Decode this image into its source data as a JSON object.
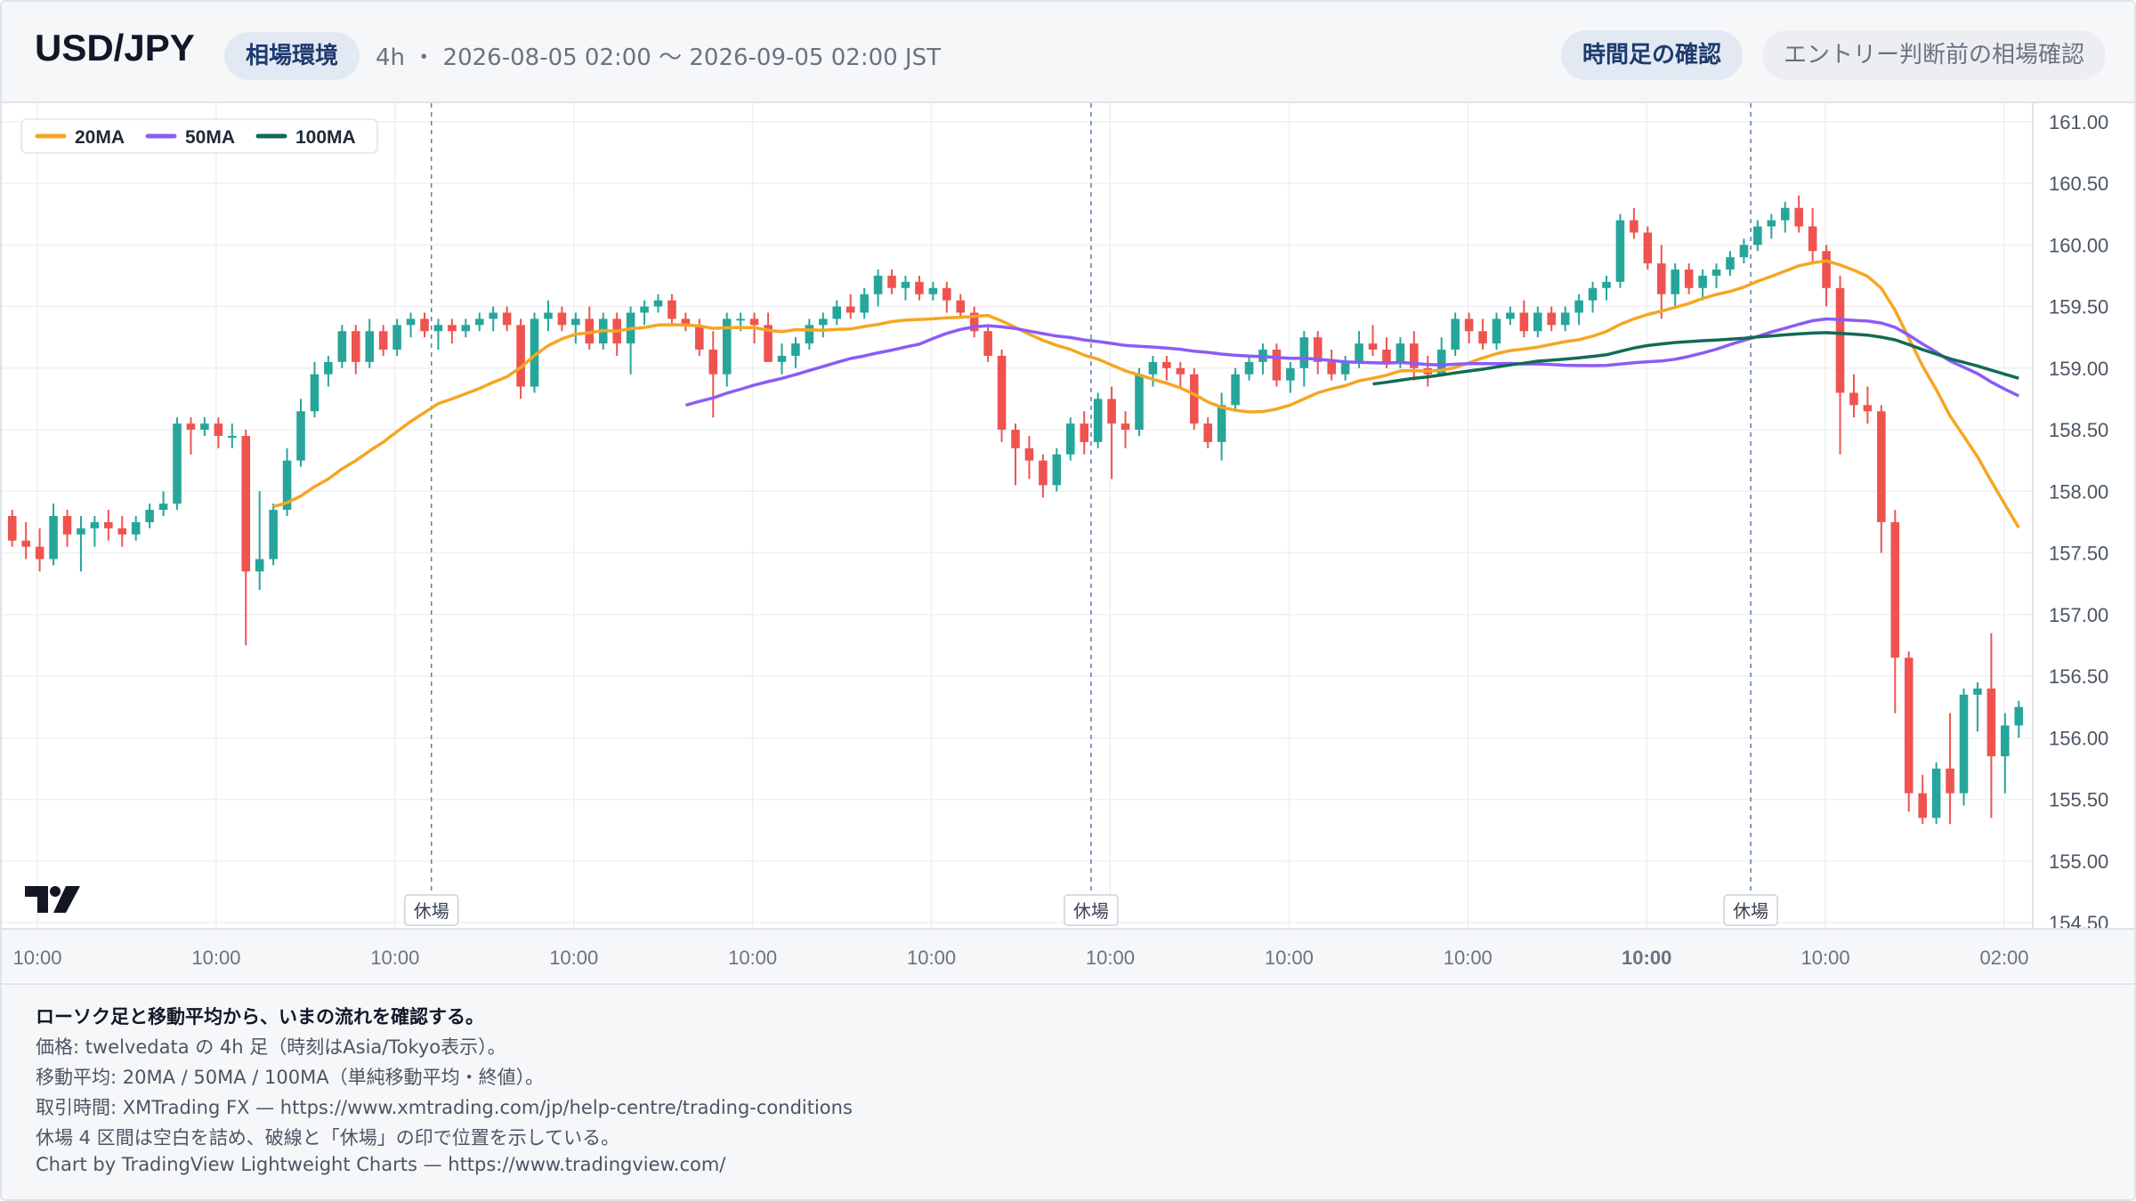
{
  "header": {
    "symbol": "USD/JPY",
    "badge": "相場環境",
    "range": "4h ・ 2026-08-05 02:00 〜 2026-09-05 02:00 JST",
    "btn_timeframe": "時間足の確認",
    "btn_entry": "エントリー判断前の相場確認"
  },
  "legend": [
    {
      "label": "20MA",
      "color": "#f5a623"
    },
    {
      "label": "50MA",
      "color": "#8b5cf6"
    },
    {
      "label": "100MA",
      "color": "#136a56"
    }
  ],
  "colors": {
    "up": "#26a69a",
    "down": "#ef5350",
    "grid": "#eef0f3",
    "axis_text": "#6b7280"
  },
  "chart_data": {
    "type": "candlestick",
    "symbol": "USD/JPY",
    "timeframe": "4h",
    "y_ticks": [
      "161.00",
      "160.50",
      "160.00",
      "159.50",
      "159.00",
      "158.50",
      "158.00",
      "157.50",
      "157.00",
      "156.50",
      "156.00",
      "155.50",
      "155.00",
      "154.50"
    ],
    "ylim": [
      154.5,
      161.0
    ],
    "x_ticks": [
      {
        "label": "10:00",
        "bold": false
      },
      {
        "label": "10:00",
        "bold": false
      },
      {
        "label": "10:00",
        "bold": false
      },
      {
        "label": "10:00",
        "bold": false
      },
      {
        "label": "10:00",
        "bold": false
      },
      {
        "label": "10:00",
        "bold": false
      },
      {
        "label": "10:00",
        "bold": false
      },
      {
        "label": "10:00",
        "bold": false
      },
      {
        "label": "10:00",
        "bold": false
      },
      {
        "label": "10:00",
        "bold": true
      },
      {
        "label": "10:00",
        "bold": false
      },
      {
        "label": "02:00",
        "bold": false
      }
    ],
    "market_closed_label": "休場",
    "market_closed_after_index": [
      30,
      78,
      126,
      174
    ],
    "candles": [
      [
        157.8,
        157.85,
        157.55,
        157.6
      ],
      [
        157.6,
        157.75,
        157.45,
        157.55
      ],
      [
        157.55,
        157.7,
        157.35,
        157.45
      ],
      [
        157.45,
        157.9,
        157.4,
        157.8
      ],
      [
        157.8,
        157.85,
        157.55,
        157.65
      ],
      [
        157.65,
        157.8,
        157.35,
        157.7
      ],
      [
        157.7,
        157.8,
        157.55,
        157.75
      ],
      [
        157.75,
        157.85,
        157.6,
        157.7
      ],
      [
        157.7,
        157.8,
        157.55,
        157.65
      ],
      [
        157.65,
        157.8,
        157.6,
        157.75
      ],
      [
        157.75,
        157.9,
        157.7,
        157.85
      ],
      [
        157.85,
        158.0,
        157.8,
        157.9
      ],
      [
        157.9,
        158.6,
        157.85,
        158.55
      ],
      [
        158.55,
        158.6,
        158.3,
        158.5
      ],
      [
        158.5,
        158.6,
        158.45,
        158.55
      ],
      [
        158.55,
        158.6,
        158.35,
        158.45
      ],
      [
        158.45,
        158.55,
        158.35,
        158.45
      ],
      [
        158.45,
        158.5,
        156.75,
        157.35
      ],
      [
        157.35,
        158.0,
        157.2,
        157.45
      ],
      [
        157.45,
        157.9,
        157.4,
        157.85
      ],
      [
        157.85,
        158.35,
        157.8,
        158.25
      ],
      [
        158.25,
        158.75,
        158.2,
        158.65
      ],
      [
        158.65,
        159.05,
        158.6,
        158.95
      ],
      [
        158.95,
        159.1,
        158.85,
        159.05
      ],
      [
        159.05,
        159.35,
        159.0,
        159.3
      ],
      [
        159.3,
        159.35,
        158.95,
        159.05
      ],
      [
        159.05,
        159.4,
        159.0,
        159.3
      ],
      [
        159.3,
        159.35,
        159.1,
        159.15
      ],
      [
        159.15,
        159.4,
        159.1,
        159.35
      ],
      [
        159.35,
        159.45,
        159.25,
        159.4
      ],
      [
        159.4,
        159.45,
        159.25,
        159.3
      ],
      [
        159.3,
        159.4,
        159.15,
        159.35
      ],
      [
        159.35,
        159.4,
        159.2,
        159.3
      ],
      [
        159.3,
        159.4,
        159.25,
        159.35
      ],
      [
        159.35,
        159.45,
        159.3,
        159.4
      ],
      [
        159.4,
        159.5,
        159.3,
        159.45
      ],
      [
        159.45,
        159.5,
        159.3,
        159.35
      ],
      [
        159.35,
        159.4,
        158.75,
        158.85
      ],
      [
        158.85,
        159.45,
        158.8,
        159.4
      ],
      [
        159.4,
        159.55,
        159.3,
        159.45
      ],
      [
        159.45,
        159.5,
        159.3,
        159.35
      ],
      [
        159.35,
        159.45,
        159.2,
        159.4
      ],
      [
        159.4,
        159.5,
        159.15,
        159.2
      ],
      [
        159.2,
        159.45,
        159.15,
        159.4
      ],
      [
        159.4,
        159.45,
        159.1,
        159.2
      ],
      [
        159.2,
        159.5,
        158.95,
        159.45
      ],
      [
        159.45,
        159.55,
        159.35,
        159.5
      ],
      [
        159.5,
        159.6,
        159.45,
        159.55
      ],
      [
        159.55,
        159.6,
        159.35,
        159.4
      ],
      [
        159.4,
        159.45,
        159.3,
        159.35
      ],
      [
        159.35,
        159.4,
        159.1,
        159.15
      ],
      [
        159.15,
        159.3,
        158.6,
        158.95
      ],
      [
        158.95,
        159.45,
        158.85,
        159.4
      ],
      [
        159.4,
        159.45,
        159.3,
        159.4
      ],
      [
        159.4,
        159.45,
        159.2,
        159.35
      ],
      [
        159.35,
        159.45,
        159.05,
        159.05
      ],
      [
        159.05,
        159.2,
        158.95,
        159.1
      ],
      [
        159.1,
        159.25,
        159.0,
        159.2
      ],
      [
        159.2,
        159.4,
        159.15,
        159.35
      ],
      [
        159.35,
        159.45,
        159.25,
        159.4
      ],
      [
        159.4,
        159.55,
        159.35,
        159.5
      ],
      [
        159.5,
        159.6,
        159.4,
        159.45
      ],
      [
        159.45,
        159.65,
        159.4,
        159.6
      ],
      [
        159.6,
        159.8,
        159.5,
        159.75
      ],
      [
        159.75,
        159.8,
        159.6,
        159.65
      ],
      [
        159.65,
        159.75,
        159.55,
        159.7
      ],
      [
        159.7,
        159.75,
        159.55,
        159.6
      ],
      [
        159.6,
        159.7,
        159.55,
        159.65
      ],
      [
        159.65,
        159.7,
        159.45,
        159.55
      ],
      [
        159.55,
        159.6,
        159.4,
        159.45
      ],
      [
        159.45,
        159.5,
        159.25,
        159.3
      ],
      [
        159.3,
        159.35,
        159.05,
        159.1
      ],
      [
        159.1,
        159.15,
        158.4,
        158.5
      ],
      [
        158.5,
        158.55,
        158.05,
        158.35
      ],
      [
        158.35,
        158.45,
        158.1,
        158.25
      ],
      [
        158.25,
        158.3,
        157.95,
        158.05
      ],
      [
        158.05,
        158.35,
        158.0,
        158.3
      ],
      [
        158.3,
        158.6,
        158.25,
        158.55
      ],
      [
        158.55,
        158.65,
        158.3,
        158.4
      ],
      [
        158.4,
        158.8,
        158.35,
        158.75
      ],
      [
        158.75,
        158.85,
        158.1,
        158.55
      ],
      [
        158.55,
        158.65,
        158.35,
        158.5
      ],
      [
        158.5,
        159.0,
        158.45,
        158.95
      ],
      [
        158.95,
        159.1,
        158.85,
        159.05
      ],
      [
        159.05,
        159.1,
        158.9,
        159.0
      ],
      [
        159.0,
        159.05,
        158.85,
        158.95
      ],
      [
        158.95,
        159.0,
        158.5,
        158.55
      ],
      [
        158.55,
        158.6,
        158.35,
        158.4
      ],
      [
        158.4,
        158.8,
        158.25,
        158.7
      ],
      [
        158.7,
        159.0,
        158.65,
        158.95
      ],
      [
        158.95,
        159.1,
        158.9,
        159.05
      ],
      [
        159.05,
        159.2,
        158.95,
        159.15
      ],
      [
        159.15,
        159.2,
        158.85,
        158.9
      ],
      [
        158.9,
        159.05,
        158.8,
        159.0
      ],
      [
        159.0,
        159.3,
        158.85,
        159.25
      ],
      [
        159.25,
        159.3,
        158.95,
        159.05
      ],
      [
        159.05,
        159.15,
        158.9,
        158.95
      ],
      [
        158.95,
        159.1,
        158.9,
        159.05
      ],
      [
        159.05,
        159.3,
        159.0,
        159.2
      ],
      [
        159.2,
        159.35,
        159.1,
        159.15
      ],
      [
        159.15,
        159.25,
        159.0,
        159.05
      ],
      [
        159.05,
        159.25,
        159.0,
        159.2
      ],
      [
        159.2,
        159.3,
        158.9,
        159.0
      ],
      [
        159.0,
        159.1,
        158.85,
        158.95
      ],
      [
        158.95,
        159.25,
        158.95,
        159.15
      ],
      [
        159.15,
        159.45,
        159.1,
        159.4
      ],
      [
        159.4,
        159.45,
        159.2,
        159.3
      ],
      [
        159.3,
        159.4,
        159.15,
        159.2
      ],
      [
        159.2,
        159.45,
        159.15,
        159.4
      ],
      [
        159.4,
        159.5,
        159.35,
        159.45
      ],
      [
        159.45,
        159.55,
        159.25,
        159.3
      ],
      [
        159.3,
        159.5,
        159.25,
        159.45
      ],
      [
        159.45,
        159.5,
        159.3,
        159.35
      ],
      [
        159.35,
        159.5,
        159.3,
        159.45
      ],
      [
        159.45,
        159.6,
        159.35,
        159.55
      ],
      [
        159.55,
        159.7,
        159.45,
        159.65
      ],
      [
        159.65,
        159.75,
        159.55,
        159.7
      ],
      [
        159.7,
        160.25,
        159.65,
        160.2
      ],
      [
        160.2,
        160.3,
        160.05,
        160.1
      ],
      [
        160.1,
        160.15,
        159.8,
        159.85
      ],
      [
        159.85,
        160.0,
        159.4,
        159.6
      ],
      [
        159.6,
        159.85,
        159.5,
        159.8
      ],
      [
        159.8,
        159.85,
        159.6,
        159.65
      ],
      [
        159.65,
        159.8,
        159.55,
        159.75
      ],
      [
        159.75,
        159.85,
        159.65,
        159.8
      ],
      [
        159.8,
        159.95,
        159.75,
        159.9
      ],
      [
        159.9,
        160.05,
        159.85,
        160.0
      ],
      [
        160.0,
        160.2,
        159.95,
        160.15
      ],
      [
        160.15,
        160.25,
        160.05,
        160.2
      ],
      [
        160.2,
        160.35,
        160.1,
        160.3
      ],
      [
        160.3,
        160.4,
        160.1,
        160.15
      ],
      [
        160.15,
        160.3,
        159.85,
        159.95
      ],
      [
        159.95,
        160.0,
        159.5,
        159.65
      ],
      [
        159.65,
        159.75,
        158.3,
        158.8
      ],
      [
        158.8,
        158.95,
        158.6,
        158.7
      ],
      [
        158.7,
        158.85,
        158.55,
        158.65
      ],
      [
        158.65,
        158.7,
        157.5,
        157.75
      ],
      [
        157.75,
        157.85,
        156.2,
        156.65
      ],
      [
        156.65,
        156.7,
        155.4,
        155.55
      ],
      [
        155.55,
        155.7,
        155.3,
        155.35
      ],
      [
        155.35,
        155.8,
        155.3,
        155.75
      ],
      [
        155.75,
        156.2,
        155.3,
        155.55
      ],
      [
        155.55,
        156.4,
        155.45,
        156.35
      ],
      [
        156.35,
        156.45,
        156.05,
        156.4
      ],
      [
        156.4,
        156.85,
        155.35,
        155.85
      ],
      [
        155.85,
        156.2,
        155.55,
        156.1
      ],
      [
        156.1,
        156.3,
        156.0,
        156.25
      ]
    ]
  },
  "footer": {
    "line1": "ローソク足と移動平均から、いまの流れを確認する。",
    "line2": "価格: twelvedata の 4h 足（時刻はAsia/Tokyo表示）。",
    "line3": "移動平均: 20MA / 50MA / 100MA（単純移動平均・終値）。",
    "line4": "取引時間: XMTrading FX — https://www.xmtrading.com/jp/help-centre/trading-conditions",
    "line5": "休場 4 区間は空白を詰め、破線と「休場」の印で位置を示している。",
    "line6": "Chart by TradingView Lightweight Charts — https://www.tradingview.com/"
  }
}
